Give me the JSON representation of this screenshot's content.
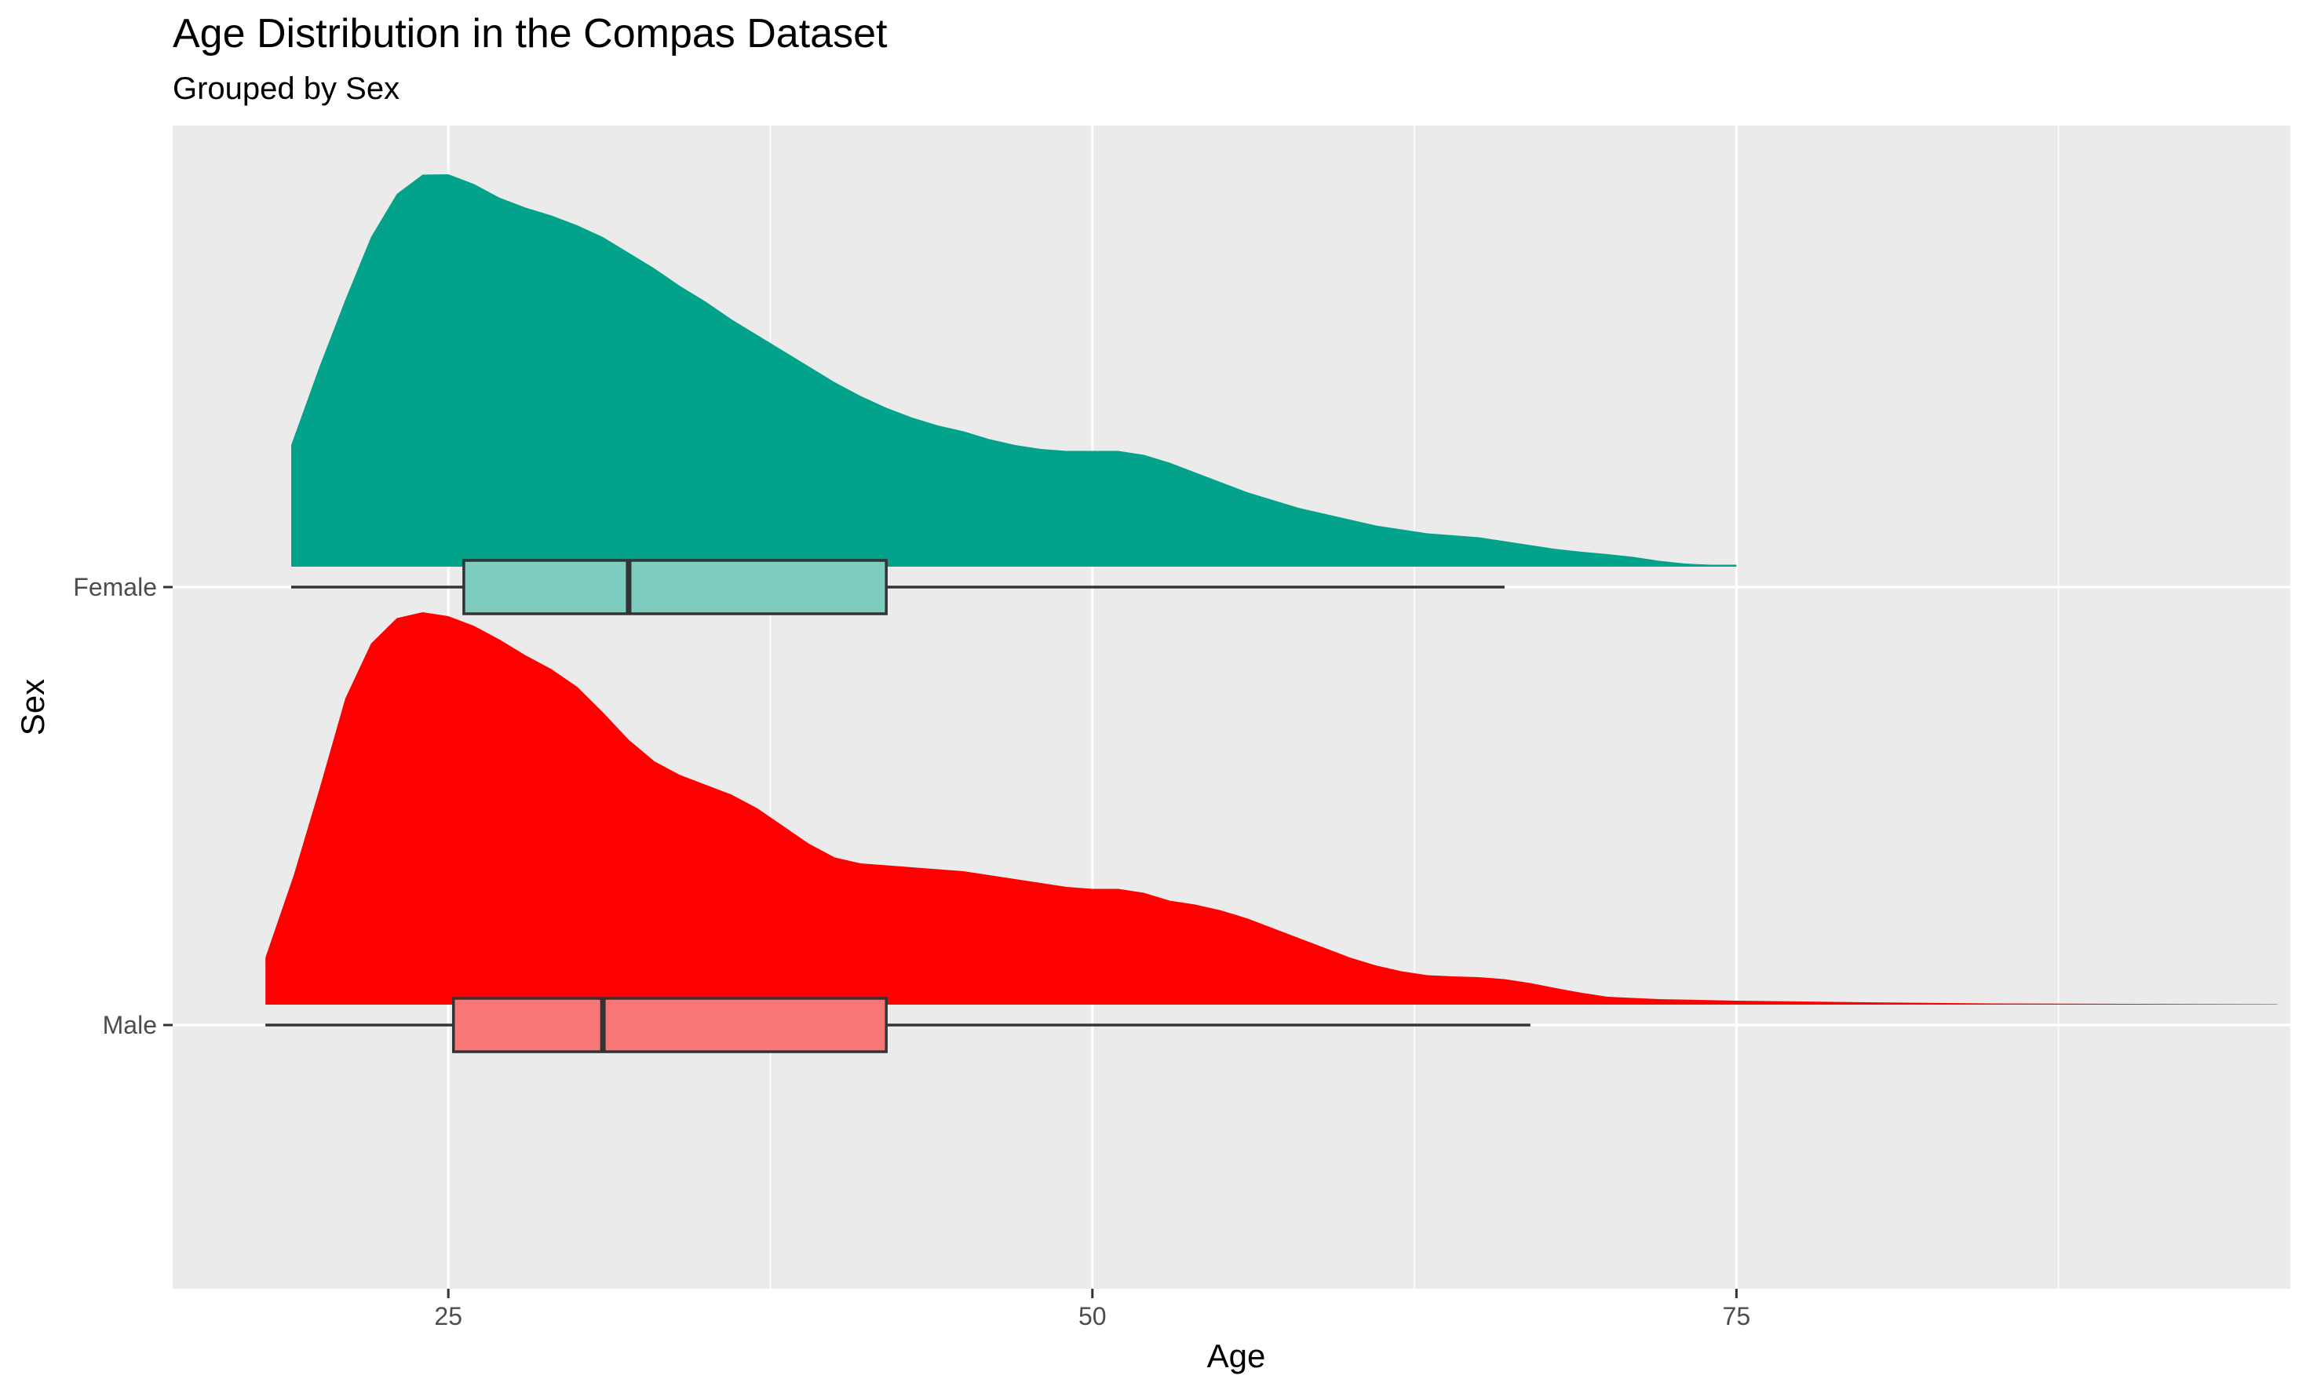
{
  "chart_data": {
    "type": "raincloud",
    "title": "Age Distribution in the Compas Dataset",
    "subtitle": "Grouped by Sex",
    "xlabel": "Age",
    "ylabel": "Sex",
    "xlim": [
      14.3,
      96.5
    ],
    "x_ticks": [
      "25",
      "50",
      "75"
    ],
    "grid": true,
    "legend": "none",
    "categories": [
      "Female",
      "Male"
    ],
    "series": [
      {
        "name": "Female",
        "color": "#03a28a",
        "box_fill": "#7dccbf",
        "box": {
          "min": 18.9,
          "q1": 25.6,
          "median": 32,
          "q3": 42,
          "max": 66
        },
        "density_range": [
          18.9,
          75
        ],
        "density": [
          [
            18.9,
            0.31
          ],
          [
            20,
            0.51
          ],
          [
            21,
            0.68
          ],
          [
            22,
            0.84
          ],
          [
            23,
            0.95
          ],
          [
            24,
            0.999
          ],
          [
            25,
            1.0
          ],
          [
            26,
            0.975
          ],
          [
            27,
            0.94
          ],
          [
            28,
            0.915
          ],
          [
            29,
            0.895
          ],
          [
            30,
            0.87
          ],
          [
            31,
            0.84
          ],
          [
            32,
            0.8
          ],
          [
            33,
            0.76
          ],
          [
            34,
            0.715
          ],
          [
            35,
            0.675
          ],
          [
            36,
            0.63
          ],
          [
            37,
            0.59
          ],
          [
            38,
            0.55
          ],
          [
            39,
            0.51
          ],
          [
            40,
            0.47
          ],
          [
            41,
            0.435
          ],
          [
            42,
            0.405
          ],
          [
            43,
            0.38
          ],
          [
            44,
            0.36
          ],
          [
            45,
            0.345
          ],
          [
            46,
            0.325
          ],
          [
            47,
            0.31
          ],
          [
            48,
            0.3
          ],
          [
            49,
            0.295
          ],
          [
            50,
            0.295
          ],
          [
            51,
            0.295
          ],
          [
            52,
            0.285
          ],
          [
            53,
            0.265
          ],
          [
            54,
            0.24
          ],
          [
            55,
            0.215
          ],
          [
            56,
            0.19
          ],
          [
            57,
            0.17
          ],
          [
            58,
            0.15
          ],
          [
            59,
            0.135
          ],
          [
            60,
            0.12
          ],
          [
            61,
            0.105
          ],
          [
            62,
            0.095
          ],
          [
            63,
            0.085
          ],
          [
            64,
            0.08
          ],
          [
            65,
            0.075
          ],
          [
            66,
            0.065
          ],
          [
            67,
            0.055
          ],
          [
            68,
            0.045
          ],
          [
            69,
            0.038
          ],
          [
            70,
            0.032
          ],
          [
            71,
            0.025
          ],
          [
            72,
            0.015
          ],
          [
            73,
            0.008
          ],
          [
            74,
            0.005
          ],
          [
            75,
            0.005
          ]
        ]
      },
      {
        "name": "Male",
        "color": "#ff0000",
        "box_fill": "#f77777",
        "box": {
          "min": 17.9,
          "q1": 25.2,
          "median": 31,
          "q3": 42,
          "max": 67
        },
        "density_range": [
          17.9,
          96
        ],
        "density": [
          [
            17.9,
            0.12
          ],
          [
            19,
            0.33
          ],
          [
            20,
            0.55
          ],
          [
            21,
            0.78
          ],
          [
            22,
            0.92
          ],
          [
            23,
            0.985
          ],
          [
            24,
            1.0
          ],
          [
            25,
            0.99
          ],
          [
            26,
            0.965
          ],
          [
            27,
            0.93
          ],
          [
            28,
            0.89
          ],
          [
            29,
            0.855
          ],
          [
            30,
            0.81
          ],
          [
            31,
            0.745
          ],
          [
            32,
            0.675
          ],
          [
            33,
            0.62
          ],
          [
            34,
            0.585
          ],
          [
            35,
            0.56
          ],
          [
            36,
            0.535
          ],
          [
            37,
            0.5
          ],
          [
            38,
            0.455
          ],
          [
            39,
            0.41
          ],
          [
            40,
            0.375
          ],
          [
            41,
            0.36
          ],
          [
            42,
            0.355
          ],
          [
            43,
            0.35
          ],
          [
            44,
            0.345
          ],
          [
            45,
            0.34
          ],
          [
            46,
            0.33
          ],
          [
            47,
            0.32
          ],
          [
            48,
            0.31
          ],
          [
            49,
            0.3
          ],
          [
            50,
            0.295
          ],
          [
            51,
            0.295
          ],
          [
            52,
            0.285
          ],
          [
            53,
            0.265
          ],
          [
            54,
            0.255
          ],
          [
            55,
            0.24
          ],
          [
            56,
            0.22
          ],
          [
            57,
            0.195
          ],
          [
            58,
            0.17
          ],
          [
            59,
            0.145
          ],
          [
            60,
            0.12
          ],
          [
            61,
            0.1
          ],
          [
            62,
            0.085
          ],
          [
            63,
            0.075
          ],
          [
            64,
            0.072
          ],
          [
            65,
            0.07
          ],
          [
            66,
            0.065
          ],
          [
            67,
            0.055
          ],
          [
            68,
            0.042
          ],
          [
            69,
            0.03
          ],
          [
            70,
            0.02
          ],
          [
            72,
            0.014
          ],
          [
            75,
            0.01
          ],
          [
            80,
            0.006
          ],
          [
            85,
            0.003
          ],
          [
            90,
            0.002
          ],
          [
            96,
            0.001
          ]
        ]
      }
    ]
  }
}
